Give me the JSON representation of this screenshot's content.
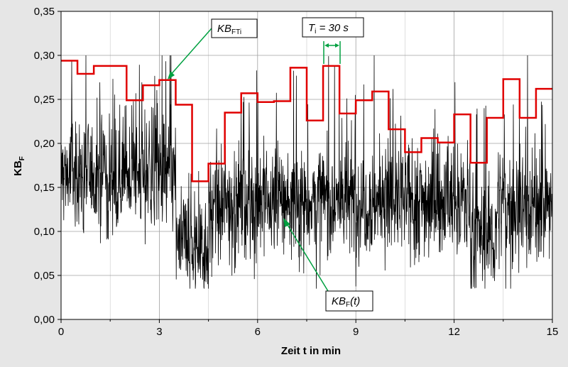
{
  "chart_data": {
    "type": "line",
    "xlabel": "Zeit t in min",
    "ylabel_main": "KB",
    "ylabel_sub": "F",
    "xlim": [
      0,
      15
    ],
    "ylim": [
      0,
      0.35
    ],
    "x_ticks": [
      "0",
      "3",
      "6",
      "9",
      "12",
      "15"
    ],
    "x_tick_values": [
      0,
      3,
      6,
      9,
      12,
      15
    ],
    "y_ticks": [
      "0,00",
      "0,05",
      "0,10",
      "0,15",
      "0,20",
      "0,25",
      "0,30",
      "0,35"
    ],
    "y_tick_values": [
      0,
      0.05,
      0.1,
      0.15,
      0.2,
      0.25,
      0.3,
      0.35
    ],
    "grid": true,
    "colors": {
      "step": "#e00000",
      "signal": "#000000",
      "annotation": "#00a040",
      "plot_bg": "#ffffff",
      "page_bg": "#e6e6e6"
    },
    "series": [
      {
        "name": "KB_FTi",
        "kind": "step",
        "interval_min": 0.5,
        "values": [
          0.294,
          0.279,
          0.288,
          0.288,
          0.249,
          0.266,
          0.272,
          0.244,
          0.157,
          0.177,
          0.235,
          0.257,
          0.247,
          0.248,
          0.286,
          0.226,
          0.288,
          0.234,
          0.249,
          0.259,
          0.216,
          0.19,
          0.206,
          0.201,
          0.233,
          0.178,
          0.229,
          0.273,
          0.229,
          0.262
        ]
      },
      {
        "name": "KB_F(t)",
        "kind": "noise",
        "segment_means": [
          {
            "from": 0,
            "to": 3.5,
            "mean": 0.165
          },
          {
            "from": 3.5,
            "to": 4.5,
            "mean": 0.085
          },
          {
            "from": 4.5,
            "to": 5.0,
            "mean": 0.12
          },
          {
            "from": 5.0,
            "to": 12.5,
            "mean": 0.135
          },
          {
            "from": 12.5,
            "to": 13.3,
            "mean": 0.095
          },
          {
            "from": 13.3,
            "to": 15.0,
            "mean": 0.13
          }
        ]
      }
    ],
    "annotations": {
      "kbfti_main": "KB",
      "kbfti_sub": "FTi",
      "kbft_main": "KB",
      "kbft_sub": "F",
      "kbft_tail": "(t)",
      "ti_main": "T",
      "ti_sub": "i",
      "ti_tail": " = 30 s"
    }
  }
}
